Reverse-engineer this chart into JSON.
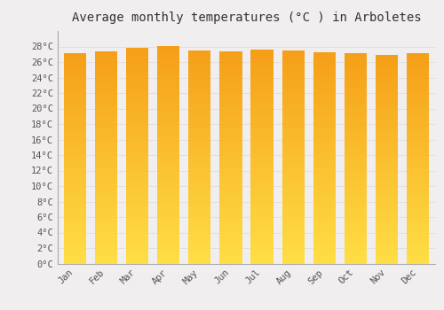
{
  "title": "Average monthly temperatures (°C ) in Arboletes",
  "months": [
    "Jan",
    "Feb",
    "Mar",
    "Apr",
    "May",
    "Jun",
    "Jul",
    "Aug",
    "Sep",
    "Oct",
    "Nov",
    "Dec"
  ],
  "values": [
    27.2,
    27.4,
    27.8,
    28.0,
    27.5,
    27.4,
    27.6,
    27.5,
    27.3,
    27.1,
    26.9,
    27.2
  ],
  "ylim": [
    0,
    30
  ],
  "yticks": [
    0,
    2,
    4,
    6,
    8,
    10,
    12,
    14,
    16,
    18,
    20,
    22,
    24,
    26,
    28
  ],
  "bar_color_top": "#F5A623",
  "bar_color_bottom": "#FFDD44",
  "background_color": "#F0EEEE",
  "grid_color": "#DDDDDD",
  "title_fontsize": 10,
  "tick_fontsize": 7.5,
  "font_family": "monospace"
}
